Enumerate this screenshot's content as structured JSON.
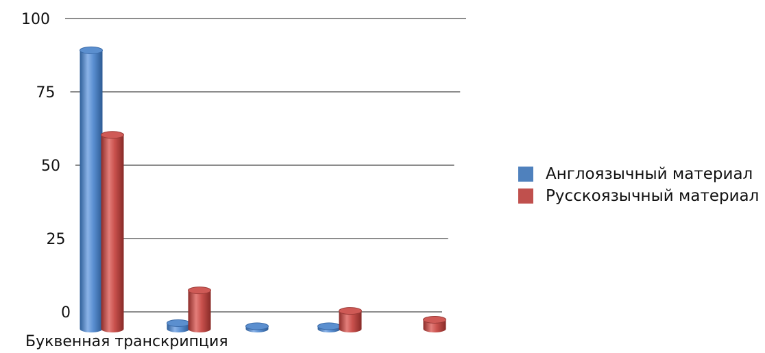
{
  "chart_data": {
    "type": "bar",
    "style": "3d-cylinder",
    "categories": [
      "Буквенная транскрипция",
      "",
      "",
      "",
      ""
    ],
    "series": [
      {
        "name": "Англоязычный материал",
        "color": "#4f81bd",
        "values": [
          95,
          2,
          0,
          0,
          null
        ]
      },
      {
        "name": "Русскоязычный материал",
        "color": "#c0504d",
        "values": [
          65,
          12,
          null,
          5,
          2
        ]
      }
    ],
    "yticks": [
      0,
      25,
      50,
      75,
      100
    ],
    "ylim": [
      0,
      100
    ],
    "grid": true,
    "legend_position": "right",
    "xlabel": "",
    "ylabel": "",
    "title": ""
  }
}
